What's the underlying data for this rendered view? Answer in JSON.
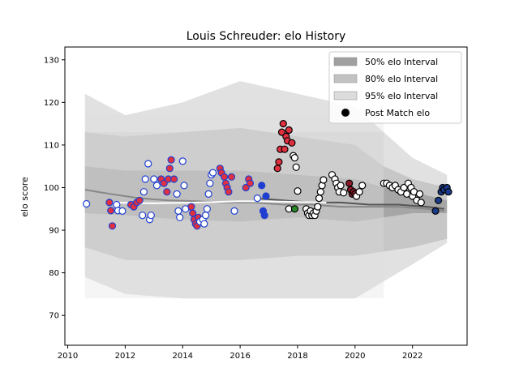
{
  "chart_data": {
    "type": "scatter",
    "title": "Louis Schreuder: elo History",
    "xlabel": "",
    "ylabel": "elo score",
    "xlim": [
      2009.9,
      2023.9
    ],
    "ylim": [
      63,
      133
    ],
    "xticks": [
      2010,
      2012,
      2014,
      2016,
      2018,
      2020,
      2022
    ],
    "yticks": [
      70,
      80,
      90,
      100,
      110,
      120,
      130
    ],
    "grid": false,
    "legend_position": "top-right",
    "legend": [
      {
        "label": "50% elo Interval",
        "kind": "band",
        "color": "#a0a0a0"
      },
      {
        "label": "80% elo Interval",
        "kind": "band",
        "color": "#c2c2c2"
      },
      {
        "label": "95% elo Interval",
        "kind": "band",
        "color": "#dcdcdc"
      },
      {
        "label": "Post Match elo",
        "kind": "marker",
        "color": "#000000"
      }
    ],
    "bands": {
      "x": [
        2010.6,
        2012,
        2014,
        2016,
        2018,
        2020,
        2021,
        2022,
        2023.2
      ],
      "mean": [
        99.5,
        98,
        97,
        96.5,
        96.5,
        96,
        96,
        95.5,
        95
      ],
      "p50": {
        "lower": [
          94,
          93.5,
          92.5,
          92,
          93,
          92,
          93,
          94,
          94
        ],
        "upper": [
          105,
          104,
          104,
          104,
          103,
          102,
          100,
          99,
          97
        ]
      },
      "p80": {
        "lower": [
          86,
          83,
          83,
          83,
          84,
          84,
          85,
          86,
          88
        ],
        "upper": [
          113,
          112,
          113,
          114,
          112,
          110,
          105,
          102,
          100
        ]
      },
      "p95": {
        "lower": [
          79,
          75,
          74,
          74,
          74,
          74,
          78,
          82,
          87
        ],
        "upper": [
          122,
          117,
          120,
          125,
          122,
          119,
          113,
          107,
          103
        ]
      },
      "cutoff_x": 2021
    },
    "trend_series": [
      {
        "x": [
          2010.6,
          2011.5,
          2012.5,
          2013.5,
          2014.5,
          2015.5,
          2016.5,
          2017.5,
          2018.5,
          2019.5,
          2020.5,
          2021.5,
          2022.5,
          2023.1
        ],
        "values": [
          99.5,
          98.5,
          97.5,
          97,
          96.8,
          96.5,
          96.5,
          96,
          96,
          95.5,
          95.5,
          95.5,
          95,
          94.5
        ],
        "color": "#888888"
      },
      {
        "x": [
          2016.5,
          2017.5,
          2018.5,
          2019.5,
          2020.5,
          2021.5,
          2022.5,
          2023.1
        ],
        "values": [
          97.5,
          97,
          96.5,
          96.5,
          96,
          96,
          95.5,
          95
        ],
        "color": "#555555"
      },
      {
        "x": [
          2011.5,
          2013,
          2014.5,
          2016,
          2017.5,
          2019
        ],
        "values": [
          96.5,
          96.3,
          96.5,
          96.8,
          96.7,
          96.5
        ],
        "color": "#ffffff"
      }
    ],
    "points": [
      {
        "x": 2010.65,
        "y": 96.2,
        "fill": "#ffffff",
        "edge": "#1f3fd0"
      },
      {
        "x": 2011.45,
        "y": 96.5,
        "fill": "#e03040",
        "edge": "#1f3fd0"
      },
      {
        "x": 2011.5,
        "y": 94.6,
        "fill": "#e03040",
        "edge": "#1f3fd0"
      },
      {
        "x": 2011.55,
        "y": 91.0,
        "fill": "#e03040",
        "edge": "#1f3fd0"
      },
      {
        "x": 2011.7,
        "y": 96.0,
        "fill": "#ffffff",
        "edge": "#1f3fd0"
      },
      {
        "x": 2011.75,
        "y": 94.6,
        "fill": "#ffffff",
        "edge": "#1f3fd0"
      },
      {
        "x": 2011.9,
        "y": 94.5,
        "fill": "#ffffff",
        "edge": "#1f3fd0"
      },
      {
        "x": 2012.2,
        "y": 96.0,
        "fill": "#e03040",
        "edge": "#1f3fd0"
      },
      {
        "x": 2012.3,
        "y": 95.5,
        "fill": "#e03040",
        "edge": "#1f3fd0"
      },
      {
        "x": 2012.4,
        "y": 96.5,
        "fill": "#e03040",
        "edge": "#1f3fd0"
      },
      {
        "x": 2012.5,
        "y": 97.0,
        "fill": "#e03040",
        "edge": "#1f3fd0"
      },
      {
        "x": 2012.6,
        "y": 93.5,
        "fill": "#ffffff",
        "edge": "#1f3fd0"
      },
      {
        "x": 2012.65,
        "y": 99.0,
        "fill": "#ffffff",
        "edge": "#1f3fd0"
      },
      {
        "x": 2012.7,
        "y": 102.0,
        "fill": "#ffffff",
        "edge": "#1f3fd0"
      },
      {
        "x": 2012.8,
        "y": 105.6,
        "fill": "#ffffff",
        "edge": "#1f3fd0"
      },
      {
        "x": 2012.85,
        "y": 92.5,
        "fill": "#ffffff",
        "edge": "#1f3fd0"
      },
      {
        "x": 2012.9,
        "y": 93.5,
        "fill": "#ffffff",
        "edge": "#1f3fd0"
      },
      {
        "x": 2013.0,
        "y": 102.0,
        "fill": "#ffffff",
        "edge": "#1f3fd0"
      },
      {
        "x": 2013.1,
        "y": 100.5,
        "fill": "#ffffff",
        "edge": "#1f3fd0"
      },
      {
        "x": 2013.25,
        "y": 102.0,
        "fill": "#e03040",
        "edge": "#1f3fd0"
      },
      {
        "x": 2013.35,
        "y": 101.0,
        "fill": "#e03040",
        "edge": "#1f3fd0"
      },
      {
        "x": 2013.45,
        "y": 99.0,
        "fill": "#e03040",
        "edge": "#1f3fd0"
      },
      {
        "x": 2013.5,
        "y": 102.0,
        "fill": "#e03040",
        "edge": "#1f3fd0"
      },
      {
        "x": 2013.55,
        "y": 104.5,
        "fill": "#e03040",
        "edge": "#1f3fd0"
      },
      {
        "x": 2013.6,
        "y": 106.5,
        "fill": "#e03040",
        "edge": "#1f3fd0"
      },
      {
        "x": 2013.7,
        "y": 102.0,
        "fill": "#e03040",
        "edge": "#1f3fd0"
      },
      {
        "x": 2013.8,
        "y": 98.5,
        "fill": "#ffffff",
        "edge": "#1f3fd0"
      },
      {
        "x": 2013.85,
        "y": 94.5,
        "fill": "#ffffff",
        "edge": "#1f3fd0"
      },
      {
        "x": 2013.9,
        "y": 93.0,
        "fill": "#ffffff",
        "edge": "#1f3fd0"
      },
      {
        "x": 2014.0,
        "y": 106.2,
        "fill": "#ffffff",
        "edge": "#1f3fd0"
      },
      {
        "x": 2014.05,
        "y": 100.5,
        "fill": "#ffffff",
        "edge": "#1f3fd0"
      },
      {
        "x": 2014.1,
        "y": 95.0,
        "fill": "#ffffff",
        "edge": "#1f3fd0"
      },
      {
        "x": 2014.3,
        "y": 95.5,
        "fill": "#e03040",
        "edge": "#1f3fd0"
      },
      {
        "x": 2014.35,
        "y": 94.0,
        "fill": "#e03040",
        "edge": "#1f3fd0"
      },
      {
        "x": 2014.4,
        "y": 92.5,
        "fill": "#e03040",
        "edge": "#1f3fd0"
      },
      {
        "x": 2014.45,
        "y": 91.5,
        "fill": "#e03040",
        "edge": "#1f3fd0"
      },
      {
        "x": 2014.5,
        "y": 91.0,
        "fill": "#e03040",
        "edge": "#1f3fd0"
      },
      {
        "x": 2014.55,
        "y": 93.0,
        "fill": "#e03040",
        "edge": "#1f3fd0"
      },
      {
        "x": 2014.6,
        "y": 92.0,
        "fill": "#ffffff",
        "edge": "#1f3fd0"
      },
      {
        "x": 2014.7,
        "y": 92.5,
        "fill": "#ffffff",
        "edge": "#1f3fd0"
      },
      {
        "x": 2014.8,
        "y": 93.5,
        "fill": "#ffffff",
        "edge": "#1f3fd0"
      },
      {
        "x": 2014.85,
        "y": 95.0,
        "fill": "#ffffff",
        "edge": "#1f3fd0"
      },
      {
        "x": 2014.9,
        "y": 98.5,
        "fill": "#ffffff",
        "edge": "#1f3fd0"
      },
      {
        "x": 2014.95,
        "y": 101.0,
        "fill": "#ffffff",
        "edge": "#1f3fd0"
      },
      {
        "x": 2015.0,
        "y": 103.0,
        "fill": "#ffffff",
        "edge": "#1f3fd0"
      },
      {
        "x": 2015.05,
        "y": 103.5,
        "fill": "#ffffff",
        "edge": "#1f3fd0"
      },
      {
        "x": 2014.75,
        "y": 91.5,
        "fill": "#ffffff",
        "edge": "#1f3fd0"
      },
      {
        "x": 2015.3,
        "y": 104.5,
        "fill": "#e03040",
        "edge": "#1f3fd0"
      },
      {
        "x": 2015.35,
        "y": 103.5,
        "fill": "#e03040",
        "edge": "#1f3fd0"
      },
      {
        "x": 2015.45,
        "y": 102.5,
        "fill": "#e03040",
        "edge": "#1f3fd0"
      },
      {
        "x": 2015.5,
        "y": 101.0,
        "fill": "#e03040",
        "edge": "#1f3fd0"
      },
      {
        "x": 2015.55,
        "y": 100.0,
        "fill": "#e03040",
        "edge": "#1f3fd0"
      },
      {
        "x": 2015.6,
        "y": 99.0,
        "fill": "#e03040",
        "edge": "#1f3fd0"
      },
      {
        "x": 2015.7,
        "y": 102.5,
        "fill": "#e03040",
        "edge": "#1f3fd0"
      },
      {
        "x": 2015.8,
        "y": 94.5,
        "fill": "#ffffff",
        "edge": "#1f3fd0"
      },
      {
        "x": 2016.2,
        "y": 100.0,
        "fill": "#e03040",
        "edge": "#1f3fd0"
      },
      {
        "x": 2016.3,
        "y": 102.0,
        "fill": "#e03040",
        "edge": "#1f3fd0"
      },
      {
        "x": 2016.35,
        "y": 101.0,
        "fill": "#e03040",
        "edge": "#1f3fd0"
      },
      {
        "x": 2016.6,
        "y": 97.5,
        "fill": "#ffffff",
        "edge": "#1f3fd0"
      },
      {
        "x": 2016.75,
        "y": 100.5,
        "fill": "#1f3fd0",
        "edge": "#1f3fd0"
      },
      {
        "x": 2016.8,
        "y": 94.5,
        "fill": "#1f3fd0",
        "edge": "#1f3fd0"
      },
      {
        "x": 2016.85,
        "y": 93.5,
        "fill": "#1f3fd0",
        "edge": "#1f3fd0"
      },
      {
        "x": 2016.9,
        "y": 98.0,
        "fill": "#1f3fd0",
        "edge": "#1f3fd0"
      },
      {
        "x": 2017.3,
        "y": 104.5,
        "fill": "#e03040",
        "edge": "#000000"
      },
      {
        "x": 2017.35,
        "y": 106.0,
        "fill": "#e03040",
        "edge": "#000000"
      },
      {
        "x": 2017.4,
        "y": 109.0,
        "fill": "#e03040",
        "edge": "#000000"
      },
      {
        "x": 2017.45,
        "y": 113.0,
        "fill": "#e03040",
        "edge": "#000000"
      },
      {
        "x": 2017.5,
        "y": 115.0,
        "fill": "#e03040",
        "edge": "#000000"
      },
      {
        "x": 2017.55,
        "y": 109.0,
        "fill": "#e03040",
        "edge": "#000000"
      },
      {
        "x": 2017.6,
        "y": 112.0,
        "fill": "#e03040",
        "edge": "#000000"
      },
      {
        "x": 2017.7,
        "y": 113.5,
        "fill": "#e03040",
        "edge": "#000000"
      },
      {
        "x": 2017.65,
        "y": 111.0,
        "fill": "#e03040",
        "edge": "#000000"
      },
      {
        "x": 2017.8,
        "y": 110.5,
        "fill": "#e03040",
        "edge": "#000000"
      },
      {
        "x": 2017.85,
        "y": 107.5,
        "fill": "#ffffff",
        "edge": "#000000"
      },
      {
        "x": 2017.9,
        "y": 107.0,
        "fill": "#ffffff",
        "edge": "#000000"
      },
      {
        "x": 2017.95,
        "y": 104.8,
        "fill": "#ffffff",
        "edge": "#000000"
      },
      {
        "x": 2017.7,
        "y": 95.0,
        "fill": "#ffffff",
        "edge": "#000000"
      },
      {
        "x": 2018.0,
        "y": 99.2,
        "fill": "#ffffff",
        "edge": "#000000"
      },
      {
        "x": 2017.9,
        "y": 95.0,
        "fill": "#2a8a2a",
        "edge": "#000000"
      },
      {
        "x": 2018.3,
        "y": 95.0,
        "fill": "#ffffff",
        "edge": "#000000"
      },
      {
        "x": 2018.35,
        "y": 94.0,
        "fill": "#ffffff",
        "edge": "#000000"
      },
      {
        "x": 2018.4,
        "y": 93.5,
        "fill": "#ffffff",
        "edge": "#000000"
      },
      {
        "x": 2018.45,
        "y": 94.5,
        "fill": "#ffffff",
        "edge": "#000000"
      },
      {
        "x": 2018.5,
        "y": 93.5,
        "fill": "#ffffff",
        "edge": "#000000"
      },
      {
        "x": 2018.55,
        "y": 94.0,
        "fill": "#ffffff",
        "edge": "#000000"
      },
      {
        "x": 2018.6,
        "y": 93.5,
        "fill": "#ffffff",
        "edge": "#000000"
      },
      {
        "x": 2018.65,
        "y": 94.5,
        "fill": "#ffffff",
        "edge": "#000000"
      },
      {
        "x": 2018.7,
        "y": 95.5,
        "fill": "#ffffff",
        "edge": "#000000"
      },
      {
        "x": 2018.75,
        "y": 97.5,
        "fill": "#ffffff",
        "edge": "#000000"
      },
      {
        "x": 2018.8,
        "y": 99.0,
        "fill": "#ffffff",
        "edge": "#000000"
      },
      {
        "x": 2018.85,
        "y": 100.5,
        "fill": "#ffffff",
        "edge": "#000000"
      },
      {
        "x": 2018.9,
        "y": 101.8,
        "fill": "#ffffff",
        "edge": "#000000"
      },
      {
        "x": 2019.2,
        "y": 103.0,
        "fill": "#ffffff",
        "edge": "#000000"
      },
      {
        "x": 2019.3,
        "y": 102.0,
        "fill": "#ffffff",
        "edge": "#000000"
      },
      {
        "x": 2019.35,
        "y": 101.0,
        "fill": "#ffffff",
        "edge": "#000000"
      },
      {
        "x": 2019.4,
        "y": 100.0,
        "fill": "#ffffff",
        "edge": "#000000"
      },
      {
        "x": 2019.45,
        "y": 99.0,
        "fill": "#ffffff",
        "edge": "#000000"
      },
      {
        "x": 2019.5,
        "y": 100.5,
        "fill": "#ffffff",
        "edge": "#000000"
      },
      {
        "x": 2019.6,
        "y": 98.8,
        "fill": "#ffffff",
        "edge": "#000000"
      },
      {
        "x": 2019.8,
        "y": 101.0,
        "fill": "#8b1a2a",
        "edge": "#000000"
      },
      {
        "x": 2019.85,
        "y": 99.5,
        "fill": "#8b1a2a",
        "edge": "#000000"
      },
      {
        "x": 2019.9,
        "y": 98.5,
        "fill": "#8b1a2a",
        "edge": "#000000"
      },
      {
        "x": 2019.95,
        "y": 99.0,
        "fill": "#8b1a2a",
        "edge": "#000000"
      },
      {
        "x": 2020.0,
        "y": 98.5,
        "fill": "#8b1a2a",
        "edge": "#000000"
      },
      {
        "x": 2020.05,
        "y": 98.0,
        "fill": "#ffffff",
        "edge": "#000000"
      },
      {
        "x": 2020.15,
        "y": 99.0,
        "fill": "#ffffff",
        "edge": "#000000"
      },
      {
        "x": 2020.25,
        "y": 100.5,
        "fill": "#ffffff",
        "edge": "#000000"
      },
      {
        "x": 2021.0,
        "y": 101.0,
        "fill": "#ffffff",
        "edge": "#000000"
      },
      {
        "x": 2021.1,
        "y": 101.0,
        "fill": "#ffffff",
        "edge": "#000000"
      },
      {
        "x": 2021.2,
        "y": 100.5,
        "fill": "#ffffff",
        "edge": "#000000"
      },
      {
        "x": 2021.3,
        "y": 100.0,
        "fill": "#ffffff",
        "edge": "#000000"
      },
      {
        "x": 2021.4,
        "y": 100.5,
        "fill": "#ffffff",
        "edge": "#000000"
      },
      {
        "x": 2021.5,
        "y": 99.5,
        "fill": "#ffffff",
        "edge": "#000000"
      },
      {
        "x": 2021.6,
        "y": 99.0,
        "fill": "#ffffff",
        "edge": "#000000"
      },
      {
        "x": 2021.7,
        "y": 100.0,
        "fill": "#ffffff",
        "edge": "#000000"
      },
      {
        "x": 2021.8,
        "y": 98.5,
        "fill": "#ffffff",
        "edge": "#000000"
      },
      {
        "x": 2021.85,
        "y": 101.0,
        "fill": "#ffffff",
        "edge": "#000000"
      },
      {
        "x": 2021.95,
        "y": 100.0,
        "fill": "#ffffff",
        "edge": "#000000"
      },
      {
        "x": 2022.0,
        "y": 98.0,
        "fill": "#ffffff",
        "edge": "#000000"
      },
      {
        "x": 2022.05,
        "y": 99.0,
        "fill": "#ffffff",
        "edge": "#000000"
      },
      {
        "x": 2022.15,
        "y": 97.0,
        "fill": "#ffffff",
        "edge": "#000000"
      },
      {
        "x": 2022.25,
        "y": 98.5,
        "fill": "#ffffff",
        "edge": "#000000"
      },
      {
        "x": 2022.3,
        "y": 96.5,
        "fill": "#ffffff",
        "edge": "#000000"
      },
      {
        "x": 2022.8,
        "y": 94.5,
        "fill": "#1a3a8a",
        "edge": "#000000"
      },
      {
        "x": 2022.9,
        "y": 97.0,
        "fill": "#1a3a8a",
        "edge": "#000000"
      },
      {
        "x": 2023.0,
        "y": 99.0,
        "fill": "#1a3a8a",
        "edge": "#000000"
      },
      {
        "x": 2023.05,
        "y": 100.0,
        "fill": "#1a3a8a",
        "edge": "#000000"
      },
      {
        "x": 2023.1,
        "y": 99.5,
        "fill": "#1a3a8a",
        "edge": "#000000"
      },
      {
        "x": 2023.2,
        "y": 100.0,
        "fill": "#1a3a8a",
        "edge": "#000000"
      },
      {
        "x": 2023.25,
        "y": 99.0,
        "fill": "#1a3a8a",
        "edge": "#000000"
      }
    ]
  }
}
